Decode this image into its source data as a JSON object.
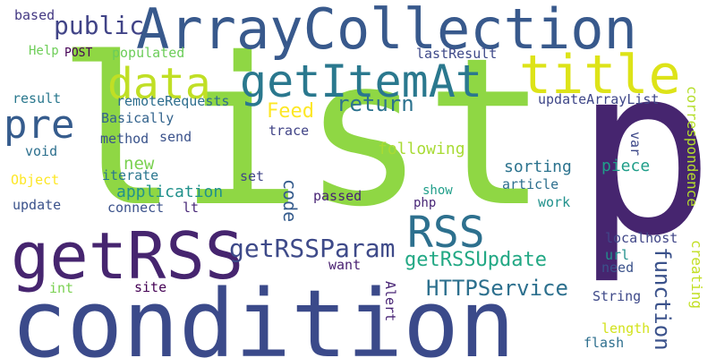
{
  "words": [
    {
      "id": "list",
      "text": "list",
      "color": "#8fd744"
    },
    {
      "id": "p",
      "text": "p",
      "color": "#46256f"
    },
    {
      "id": "condition",
      "text": "condition",
      "color": "#3b4a8a"
    },
    {
      "id": "arraycollection",
      "text": "ArrayCollection",
      "color": "#38598c"
    },
    {
      "id": "title",
      "text": "title",
      "color": "#dde318"
    },
    {
      "id": "getrss",
      "text": "getRSS",
      "color": "#46256f"
    },
    {
      "id": "getitemat",
      "text": "getItemAt",
      "color": "#2a788e"
    },
    {
      "id": "data",
      "text": "data",
      "color": "#c0df25"
    },
    {
      "id": "pre",
      "text": "pre",
      "color": "#365c8d"
    },
    {
      "id": "rss",
      "text": "RSS",
      "color": "#2d708e"
    },
    {
      "id": "getrssparam",
      "text": "getRSSParam",
      "color": "#3e4a89"
    },
    {
      "id": "public",
      "text": "public",
      "color": "#414487"
    },
    {
      "id": "getrssupdate",
      "text": "getRSSUpdate",
      "color": "#22a884"
    },
    {
      "id": "httpservice",
      "text": "HTTPService",
      "color": "#2d708e"
    },
    {
      "id": "function",
      "text": "function",
      "color": "#3b528b"
    },
    {
      "id": "return",
      "text": "return",
      "color": "#2c728e"
    },
    {
      "id": "feed",
      "text": "Feed",
      "color": "#fde725"
    },
    {
      "id": "new",
      "text": "new",
      "color": "#7ad151"
    },
    {
      "id": "application",
      "text": "application",
      "color": "#21918c"
    },
    {
      "id": "code",
      "text": "code",
      "color": "#365c8d"
    },
    {
      "id": "correspondence",
      "text": "correspondence",
      "color": "#b5de2b"
    },
    {
      "id": "creating",
      "text": "creating",
      "color": "#c2df23"
    },
    {
      "id": "populated",
      "text": "populated",
      "color": "#6ccd5a"
    },
    {
      "id": "lastresult",
      "text": "lastResult",
      "color": "#3e4989"
    },
    {
      "id": "updatearraylist",
      "text": "updateArrayList",
      "color": "#3f4788"
    },
    {
      "id": "remoterequests",
      "text": "remoteRequests",
      "color": "#2e6e8e"
    },
    {
      "id": "basically",
      "text": "Basically",
      "color": "#33638d"
    },
    {
      "id": "method",
      "text": "method",
      "color": "#3a538b"
    },
    {
      "id": "send",
      "text": "send",
      "color": "#3b528b"
    },
    {
      "id": "trace",
      "text": "trace",
      "color": "#414487"
    },
    {
      "id": "following",
      "text": "following",
      "color": "#a8db34"
    },
    {
      "id": "sorting",
      "text": "sorting",
      "color": "#2c738e"
    },
    {
      "id": "piece",
      "text": "piece",
      "color": "#1f9e89"
    },
    {
      "id": "var",
      "text": "var",
      "color": "#3e4989"
    },
    {
      "id": "article",
      "text": "article",
      "color": "#2e6f8e"
    },
    {
      "id": "show",
      "text": "show",
      "color": "#1f9e89"
    },
    {
      "id": "php",
      "text": "php",
      "color": "#482677"
    },
    {
      "id": "work",
      "text": "work",
      "color": "#21918c"
    },
    {
      "id": "passed",
      "text": "passed",
      "color": "#482475"
    },
    {
      "id": "set",
      "text": "set",
      "color": "#404688"
    },
    {
      "id": "iterate",
      "text": "iterate",
      "color": "#2a768e"
    },
    {
      "id": "connect",
      "text": "connect",
      "color": "#3b528b"
    },
    {
      "id": "lt",
      "text": "lt",
      "color": "#482878"
    },
    {
      "id": "update",
      "text": "update",
      "color": "#3b528b"
    },
    {
      "id": "object",
      "text": "Object",
      "color": "#fde725"
    },
    {
      "id": "void",
      "text": "void",
      "color": "#2d708e"
    },
    {
      "id": "result",
      "text": "result",
      "color": "#2a788e"
    },
    {
      "id": "help",
      "text": "Help",
      "color": "#6ece58"
    },
    {
      "id": "post",
      "text": "POST",
      "color": "#440154"
    },
    {
      "id": "based",
      "text": "based",
      "color": "#443983"
    },
    {
      "id": "want",
      "text": "want",
      "color": "#481f70"
    },
    {
      "id": "site",
      "text": "site",
      "color": "#440154"
    },
    {
      "id": "int",
      "text": "int",
      "color": "#7ad151"
    },
    {
      "id": "alert",
      "text": "Alert",
      "color": "#482475"
    },
    {
      "id": "url",
      "text": "url",
      "color": "#21918c"
    },
    {
      "id": "localhost",
      "text": "localhost",
      "color": "#404688"
    },
    {
      "id": "need",
      "text": "need",
      "color": "#3b528b"
    },
    {
      "id": "string",
      "text": "String",
      "color": "#3e4989"
    },
    {
      "id": "length",
      "text": "length",
      "color": "#d2e21b"
    },
    {
      "id": "flash",
      "text": "flash",
      "color": "#2e6f8e"
    }
  ]
}
